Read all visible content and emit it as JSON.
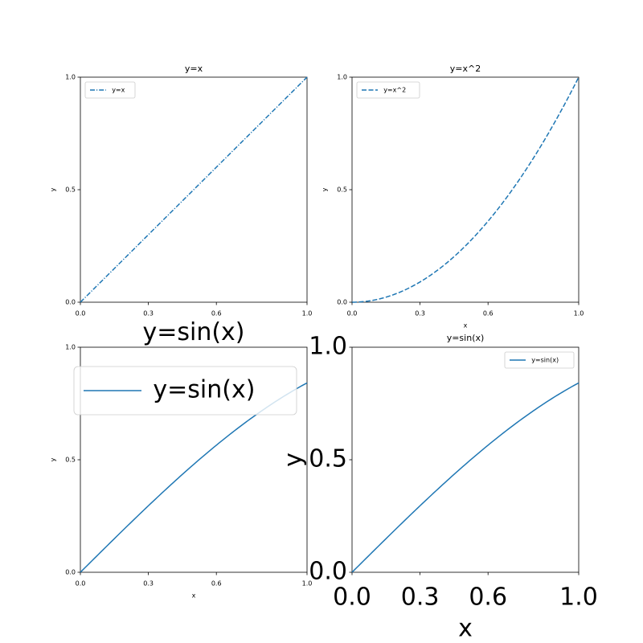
{
  "chart_data": [
    {
      "type": "line",
      "title": "y=x",
      "xlabel": "",
      "ylabel": "y",
      "xlim": [
        0,
        1
      ],
      "ylim": [
        0,
        1
      ],
      "xticks": [
        0.0,
        0.3,
        0.6,
        1.0
      ],
      "xtick_labels": [
        "0.0",
        "0.3",
        "0.6",
        "1.0"
      ],
      "yticks": [
        0.0,
        0.5,
        1.0
      ],
      "ytick_labels": [
        "0.0",
        "0.5",
        "1.0"
      ],
      "grid": false,
      "legend": "upper-left",
      "series": [
        {
          "name": "y=x",
          "color": "#1f77b4",
          "linestyle": "dashdot",
          "function": "x"
        }
      ]
    },
    {
      "type": "line",
      "title": "y=x^2",
      "xlabel": "x",
      "ylabel": "y",
      "xlim": [
        0,
        1
      ],
      "ylim": [
        0,
        1
      ],
      "xticks": [
        0.0,
        0.3,
        0.6,
        1.0
      ],
      "xtick_labels": [
        "0.0",
        "0.3",
        "0.6",
        "1.0"
      ],
      "yticks": [
        0.0,
        0.5,
        1.0
      ],
      "ytick_labels": [
        "0.0",
        "0.5",
        "1.0"
      ],
      "grid": false,
      "legend": "upper-left",
      "series": [
        {
          "name": "y=x^2",
          "color": "#1f77b4",
          "linestyle": "dashed",
          "function": "x^2"
        }
      ]
    },
    {
      "type": "line",
      "title": "y=sin(x)",
      "xlabel": "x",
      "ylabel": "y",
      "xlim": [
        0,
        1
      ],
      "ylim": [
        0,
        1
      ],
      "xticks": [
        0.0,
        0.3,
        0.6,
        1.0
      ],
      "xtick_labels": [
        "0.0",
        "0.3",
        "0.6",
        "1.0"
      ],
      "yticks": [
        0.0,
        0.5,
        1.0
      ],
      "ytick_labels": [
        "0.0",
        "0.5",
        "1.0"
      ],
      "grid": false,
      "legend": "upper-left",
      "series": [
        {
          "name": "y=sin(x)",
          "color": "#1f77b4",
          "linestyle": "solid",
          "function": "sin(x)"
        }
      ]
    },
    {
      "type": "line",
      "title": "y=sin(x)",
      "xlabel": "x",
      "ylabel": "y",
      "xlim": [
        0,
        1
      ],
      "ylim": [
        0,
        1
      ],
      "xticks": [
        0.0,
        0.3,
        0.6,
        1.0
      ],
      "xtick_labels": [
        "0.0",
        "0.3",
        "0.6",
        "1.0"
      ],
      "yticks": [
        0.0,
        0.5,
        1.0
      ],
      "ytick_labels": [
        "0.0",
        "0.5",
        "1.0"
      ],
      "grid": false,
      "legend": "upper-right",
      "series": [
        {
          "name": "y=sin(x)",
          "color": "#1f77b4",
          "linestyle": "solid",
          "function": "sin(x)"
        }
      ]
    }
  ]
}
